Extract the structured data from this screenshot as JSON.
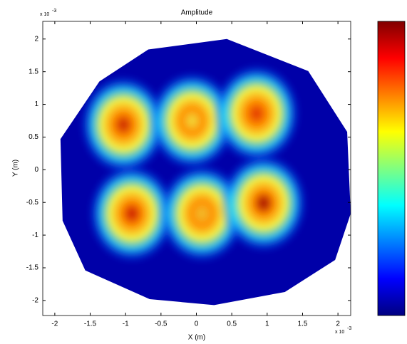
{
  "chart_data": {
    "type": "heatmap",
    "title": "Amplitude",
    "x_label": "X (m)",
    "y_label": "Y (m)",
    "axis_multiplier": "x 10",
    "axis_exponent": "-3",
    "xlim": [
      -2.17,
      2.18
    ],
    "ylim": [
      -2.23,
      2.27
    ],
    "xticks": [
      -2,
      -1.5,
      -1,
      -0.5,
      0,
      0.5,
      1,
      1.5,
      2
    ],
    "yticks": [
      -2,
      -1.5,
      -1,
      -0.5,
      0,
      0.5,
      1,
      1.5,
      2
    ],
    "colormap": "jet",
    "background_color": "#0000a8",
    "boundary": {
      "x": [
        -0.68,
        0.43,
        1.58,
        2.13,
        2.18,
        1.96,
        1.25,
        0.25,
        -0.66,
        -1.57,
        -1.89,
        -1.92,
        -1.37
      ],
      "y": [
        1.84,
        2.0,
        1.51,
        0.58,
        -0.67,
        -1.38,
        -1.87,
        -2.07,
        -1.98,
        -1.54,
        -0.78,
        0.47,
        1.35
      ]
    },
    "lobes": {
      "x": [
        -1.03,
        -0.06,
        0.85,
        -0.91,
        0.08,
        0.95
      ],
      "y": [
        0.69,
        0.75,
        0.86,
        -0.67,
        -0.67,
        -0.51
      ],
      "colors": [
        "#c81e00",
        "#f0e040",
        "#e03000",
        "#c81000",
        "#f0c030",
        "#a00000"
      ]
    }
  }
}
